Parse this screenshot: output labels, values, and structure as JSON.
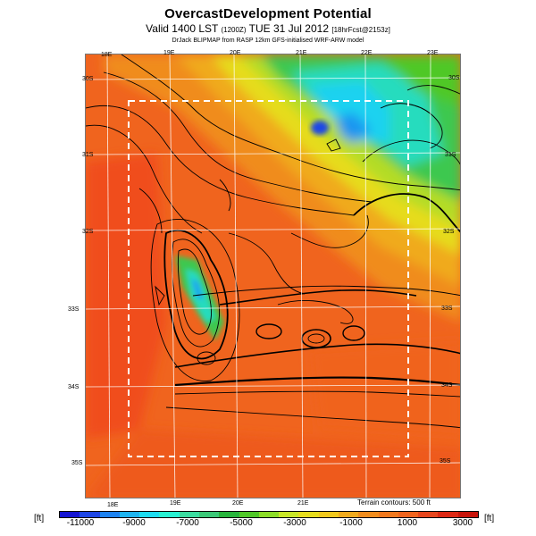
{
  "header": {
    "title": "OvercastDevelopment Potential",
    "subtitle_main": "Valid 1400 LST",
    "subtitle_small": "(1200Z)",
    "subtitle_date": "TUE 31 Jul 2012",
    "subtitle_tag": "[18hrFcst@2153z]",
    "credit": "DrJack BLIPMAP from RASP 12km GFS-initialised WRF-ARW model"
  },
  "map": {
    "top_lon_labels": [
      "18E",
      "19E",
      "20E",
      "21E",
      "22E",
      "23E"
    ],
    "bottom_lon_labels": [
      "18E",
      "19E",
      "20E",
      "21E"
    ],
    "left_lat_labels": [
      "30S",
      "31S",
      "32S",
      "33S",
      "34S",
      "35S"
    ],
    "right_lat_labels": [
      "30S",
      "31S",
      "32S",
      "33S",
      "34S",
      "35S"
    ],
    "contour_note": "Terrain contours: 500 ft"
  },
  "colorbar": {
    "unit_left": "[ft]",
    "unit_right": "[ft]",
    "tick_labels": [
      "-11000",
      "-9000",
      "-7000",
      "-5000",
      "-3000",
      "-1000",
      "1000",
      "3000"
    ],
    "colors": [
      "#1414d2",
      "#1e46e6",
      "#1e82f0",
      "#1eb4f0",
      "#1edcf0",
      "#28f0d2",
      "#3cdca0",
      "#3cc878",
      "#28b43c",
      "#50c828",
      "#8cdc28",
      "#c8e628",
      "#e6dc1e",
      "#f0c81e",
      "#f0aa1e",
      "#f08c1e",
      "#f0781e",
      "#f0641e",
      "#e6461e",
      "#dc2814",
      "#c8140a"
    ]
  }
}
